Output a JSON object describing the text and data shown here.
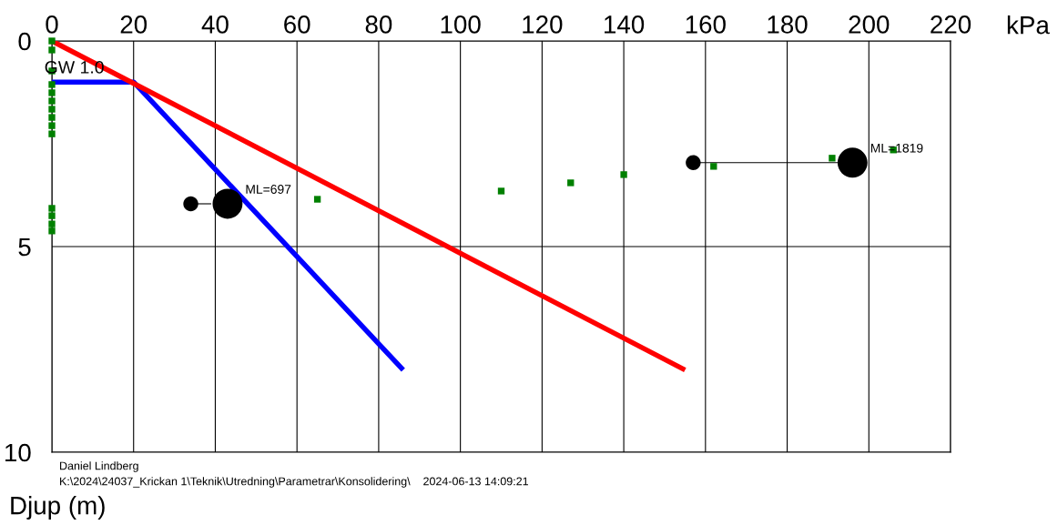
{
  "chart_data": {
    "type": "line",
    "xlabel": "kPa",
    "ylabel": "Djup (m)",
    "xlim": [
      0,
      220
    ],
    "xticks": [
      0,
      20,
      40,
      60,
      80,
      100,
      120,
      140,
      160,
      180,
      200,
      220
    ],
    "ylim": [
      10,
      0
    ],
    "yticks": [
      0,
      5,
      10
    ],
    "grid": true,
    "series": [
      {
        "color": "#0000ff",
        "x": [
          0,
          20,
          86
        ],
        "values": [
          1.0,
          1.0,
          8.0
        ]
      },
      {
        "color": "#ff0000",
        "x": [
          0,
          155
        ],
        "values": [
          0,
          8.0
        ]
      },
      {
        "type": "scatter",
        "marker": "square",
        "color": "#008000",
        "x": [
          0,
          0,
          0,
          0,
          0,
          0,
          0,
          0,
          0,
          0,
          0,
          0,
          0,
          0,
          65,
          110,
          127,
          140,
          162,
          191,
          206
        ],
        "values": [
          0,
          0.22,
          0.73,
          1.06,
          1.26,
          1.46,
          1.66,
          1.86,
          2.06,
          2.26,
          4.07,
          4.25,
          4.45,
          4.62,
          3.85,
          3.65,
          3.45,
          3.25,
          3.05,
          2.85,
          2.65
        ]
      },
      {
        "color": "#000000",
        "x": [
          34,
          39
        ],
        "values": [
          3.96,
          3.96
        ]
      },
      {
        "color": "#000000",
        "x": [
          157,
          193
        ],
        "values": [
          2.96,
          2.96
        ]
      },
      {
        "type": "bubble",
        "color": "#000000",
        "x": [
          34,
          43,
          157,
          196
        ],
        "values": [
          3.96,
          3.96,
          2.96,
          2.96
        ],
        "sizes": [
          0.25,
          1,
          0.25,
          1
        ]
      }
    ],
    "annotations": [
      {
        "text": "GW 1.0",
        "x": 0,
        "y": 1.0
      },
      {
        "text": "ML=697",
        "x": 43,
        "y": 3.96
      },
      {
        "text": "ML=1819",
        "x": 196,
        "y": 2.96
      },
      "Daniel Lindberg",
      "K:\\2024\\24037_Krickan 1\\Teknik\\Utredning\\Parametrar\\Konsolidering\\    2024-06-13 14:09:21"
    ]
  }
}
